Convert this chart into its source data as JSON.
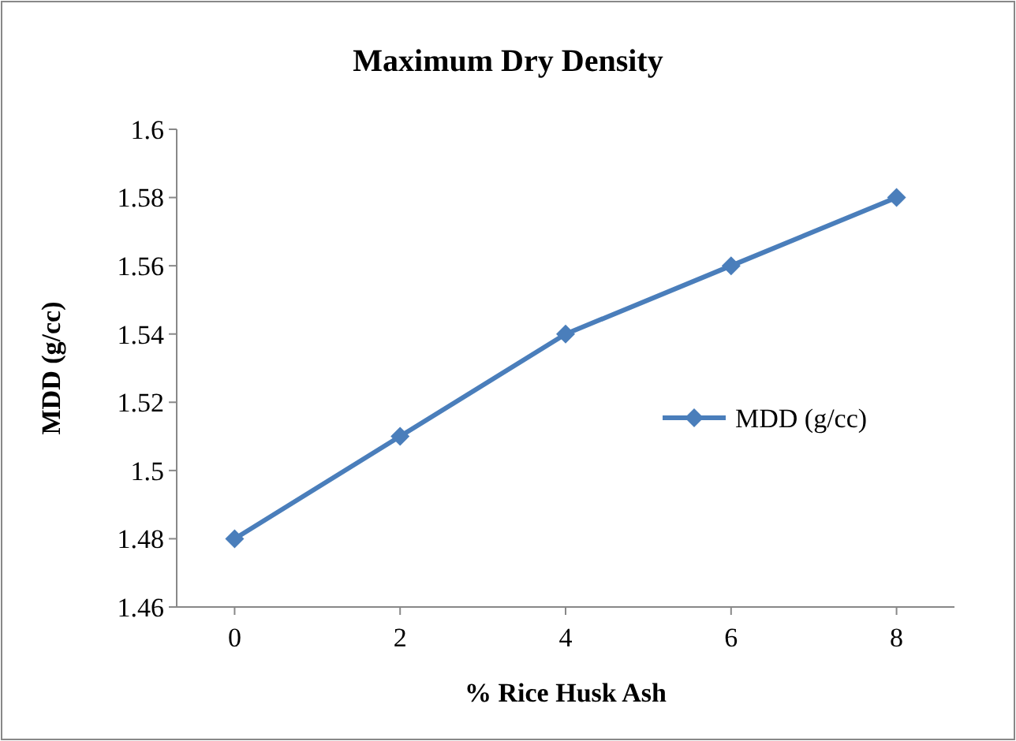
{
  "chart_data": {
    "type": "line",
    "title": "Maximum Dry Density",
    "xlabel": "% Rice Husk Ash",
    "ylabel": "MDD (g/cc)",
    "categories": [
      "0",
      "2",
      "4",
      "6",
      "8"
    ],
    "series": [
      {
        "name": "MDD (g/cc)",
        "color": "#4a7ebb",
        "values": [
          1.48,
          1.51,
          1.54,
          1.56,
          1.58
        ]
      }
    ],
    "ylim": [
      1.46,
      1.6
    ],
    "yticks": [
      1.46,
      1.48,
      {
        "value": 1.5,
        "label": "1.5"
      },
      1.52,
      1.54,
      1.56,
      1.58,
      {
        "value": 1.6,
        "label": "1.6"
      }
    ],
    "grid": false,
    "legend": "right",
    "marker": "diamond",
    "line_style": "solid"
  }
}
